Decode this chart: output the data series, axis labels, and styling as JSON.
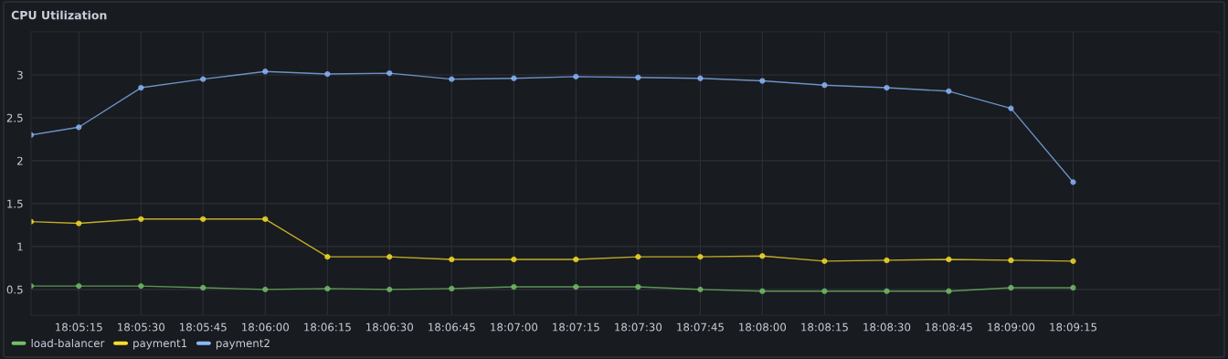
{
  "chart_data": {
    "type": "line",
    "title": "CPU Utilization",
    "x": [
      18.0843,
      18.0875,
      18.09167,
      18.09583,
      18.1,
      18.10417,
      18.10833,
      18.1125,
      18.11667,
      18.12083,
      18.125,
      18.12917,
      18.13333,
      18.1375,
      18.14167,
      18.14583,
      18.15,
      18.15417
    ],
    "series": [
      {
        "name": "load-balancer",
        "color": "#73bf69",
        "values": [
          0.54,
          0.54,
          0.54,
          0.52,
          0.5,
          0.51,
          0.5,
          0.51,
          0.53,
          0.53,
          0.53,
          0.5,
          0.48,
          0.48,
          0.48,
          0.48,
          0.52,
          0.52
        ]
      },
      {
        "name": "payment1",
        "color": "#fade2a",
        "values": [
          1.29,
          1.27,
          1.32,
          1.32,
          1.32,
          0.88,
          0.88,
          0.85,
          0.85,
          0.85,
          0.88,
          0.88,
          0.89,
          0.83,
          0.84,
          0.85,
          0.84,
          0.83
        ]
      },
      {
        "name": "payment2",
        "color": "#8ab8ff",
        "values": [
          2.3,
          2.39,
          2.85,
          2.95,
          3.04,
          3.01,
          3.02,
          2.95,
          2.96,
          2.98,
          2.97,
          2.96,
          2.93,
          2.88,
          2.85,
          2.81,
          2.61,
          1.75
        ]
      }
    ],
    "xlim": [
      18.0843,
      18.164
    ],
    "xticks": [
      {
        "value": 18.0875,
        "label": "18:05:15"
      },
      {
        "value": 18.09167,
        "label": "18:05:30"
      },
      {
        "value": 18.09583,
        "label": "18:05:45"
      },
      {
        "value": 18.1,
        "label": "18:06:00"
      },
      {
        "value": 18.10417,
        "label": "18:06:15"
      },
      {
        "value": 18.10833,
        "label": "18:06:30"
      },
      {
        "value": 18.1125,
        "label": "18:06:45"
      },
      {
        "value": 18.11667,
        "label": "18:07:00"
      },
      {
        "value": 18.12083,
        "label": "18:07:15"
      },
      {
        "value": 18.125,
        "label": "18:07:30"
      },
      {
        "value": 18.12917,
        "label": "18:07:45"
      },
      {
        "value": 18.13333,
        "label": "18:08:00"
      },
      {
        "value": 18.1375,
        "label": "18:08:15"
      },
      {
        "value": 18.14167,
        "label": "18:08:30"
      },
      {
        "value": 18.14583,
        "label": "18:08:45"
      },
      {
        "value": 18.15,
        "label": "18:09:00"
      },
      {
        "value": 18.15417,
        "label": "18:09:15"
      }
    ],
    "ylim": [
      0.2,
      3.5
    ],
    "yticks": [
      0.5,
      1,
      1.5,
      2,
      2.5,
      3
    ],
    "grid": true,
    "legend": "bottom left",
    "marker": "circle",
    "line_style": "solid"
  }
}
